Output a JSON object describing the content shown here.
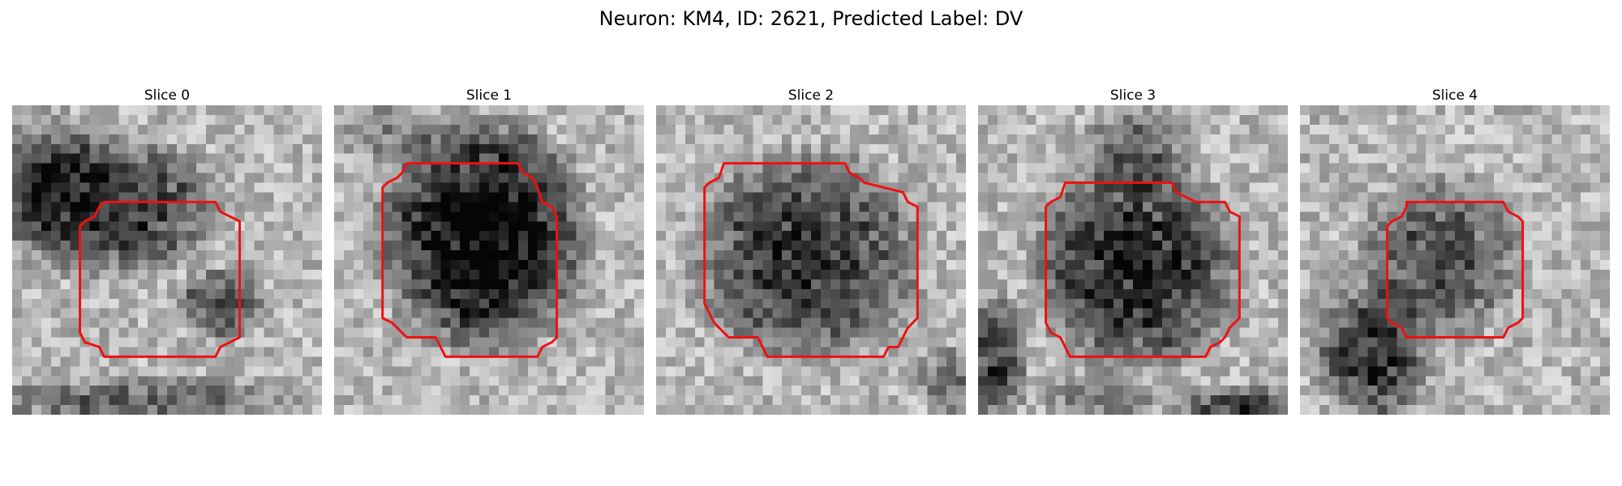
{
  "figure": {
    "title": "Neuron: KM4, ID: 2621, Predicted Label: DV",
    "colormap": "gray",
    "contour_color": "#ee1111"
  },
  "panels": [
    {
      "title": "Slice 0"
    },
    {
      "title": "Slice 1"
    },
    {
      "title": "Slice 2"
    },
    {
      "title": "Slice 3"
    },
    {
      "title": "Slice 4"
    }
  ]
}
